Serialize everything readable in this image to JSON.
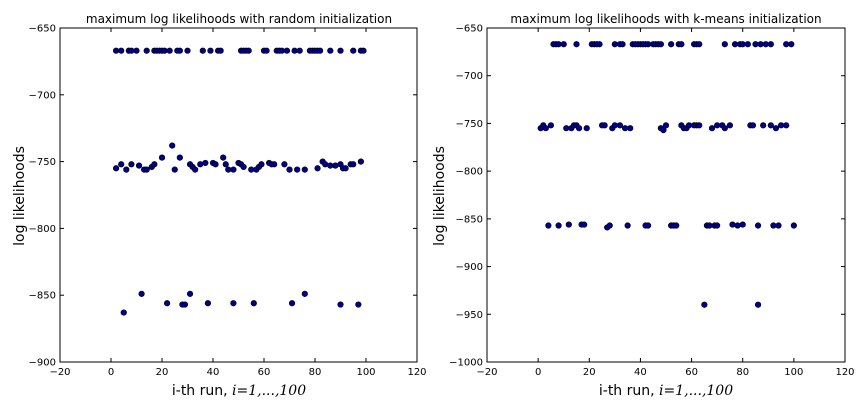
{
  "chart_data": [
    {
      "type": "scatter",
      "title": "maximum log likelihoods with random initialization",
      "xlabel_text": "i-th run, ",
      "xlabel_math": "i=1,...,100",
      "ylabel": "log likelihoods",
      "xlim": [
        -20,
        120
      ],
      "ylim": [
        -900,
        -650
      ],
      "xticks": [
        -20,
        0,
        20,
        40,
        60,
        80,
        100,
        120
      ],
      "yticks": [
        -900,
        -850,
        -800,
        -750,
        -700,
        -650
      ],
      "grid": false,
      "marker_color": "#00008b",
      "points": [
        [
          2,
          -667
        ],
        [
          4,
          -667
        ],
        [
          7,
          -667
        ],
        [
          8,
          -667
        ],
        [
          10,
          -667
        ],
        [
          14,
          -667
        ],
        [
          17,
          -667
        ],
        [
          18,
          -667
        ],
        [
          19,
          -667
        ],
        [
          20,
          -667
        ],
        [
          21,
          -667
        ],
        [
          23,
          -667
        ],
        [
          26,
          -667
        ],
        [
          27,
          -667
        ],
        [
          30,
          -667
        ],
        [
          36,
          -667
        ],
        [
          39,
          -667
        ],
        [
          42,
          -667
        ],
        [
          43,
          -667
        ],
        [
          51,
          -667
        ],
        [
          52,
          -667
        ],
        [
          53,
          -667
        ],
        [
          54,
          -667
        ],
        [
          60,
          -667
        ],
        [
          61,
          -667
        ],
        [
          65,
          -667
        ],
        [
          66,
          -667
        ],
        [
          67,
          -667
        ],
        [
          69,
          -667
        ],
        [
          72,
          -667
        ],
        [
          74,
          -667
        ],
        [
          78,
          -667
        ],
        [
          79,
          -667
        ],
        [
          80,
          -667
        ],
        [
          81,
          -667
        ],
        [
          82,
          -667
        ],
        [
          86,
          -667
        ],
        [
          90,
          -667
        ],
        [
          95,
          -667
        ],
        [
          98,
          -667
        ],
        [
          99,
          -667
        ],
        [
          2,
          -755
        ],
        [
          4,
          -752
        ],
        [
          6,
          -756
        ],
        [
          8,
          -752
        ],
        [
          11,
          -753
        ],
        [
          13,
          -756
        ],
        [
          14,
          -756
        ],
        [
          16,
          -754
        ],
        [
          17,
          -752
        ],
        [
          20,
          -747
        ],
        [
          24,
          -738
        ],
        [
          25,
          -756
        ],
        [
          27,
          -747
        ],
        [
          31,
          -752
        ],
        [
          32,
          -754
        ],
        [
          33,
          -756
        ],
        [
          35,
          -752
        ],
        [
          37,
          -751
        ],
        [
          40,
          -751
        ],
        [
          41,
          -752
        ],
        [
          44,
          -747
        ],
        [
          45,
          -752
        ],
        [
          46,
          -756
        ],
        [
          48,
          -756
        ],
        [
          50,
          -751
        ],
        [
          51,
          -752
        ],
        [
          52,
          -754
        ],
        [
          55,
          -756
        ],
        [
          57,
          -756
        ],
        [
          58,
          -754
        ],
        [
          59,
          -752
        ],
        [
          62,
          -751
        ],
        [
          63,
          -752
        ],
        [
          64,
          -752
        ],
        [
          68,
          -752
        ],
        [
          70,
          -756
        ],
        [
          73,
          -756
        ],
        [
          76,
          -756
        ],
        [
          81,
          -755
        ],
        [
          83,
          -750
        ],
        [
          84,
          -752
        ],
        [
          86,
          -753
        ],
        [
          88,
          -753
        ],
        [
          90,
          -752
        ],
        [
          91,
          -755
        ],
        [
          92,
          -755
        ],
        [
          94,
          -752
        ],
        [
          95,
          -752
        ],
        [
          98,
          -750
        ],
        [
          5,
          -863
        ],
        [
          12,
          -849
        ],
        [
          22,
          -856
        ],
        [
          28,
          -857
        ],
        [
          29,
          -857
        ],
        [
          31,
          -849
        ],
        [
          38,
          -856
        ],
        [
          48,
          -856
        ],
        [
          56,
          -856
        ],
        [
          71,
          -856
        ],
        [
          76,
          -849
        ],
        [
          90,
          -857
        ],
        [
          97,
          -857
        ]
      ]
    },
    {
      "type": "scatter",
      "title": "maximum log likelihoods with k-means initialization",
      "xlabel_text": "i-th run, ",
      "xlabel_math": "i=1,...,100",
      "ylabel": "log likelihoods",
      "xlim": [
        -20,
        120
      ],
      "ylim": [
        -1000,
        -650
      ],
      "xticks": [
        -20,
        0,
        20,
        40,
        60,
        80,
        100,
        120
      ],
      "yticks": [
        -1000,
        -950,
        -900,
        -850,
        -800,
        -750,
        -700,
        -650
      ],
      "grid": false,
      "marker_color": "#00008b",
      "points": [
        [
          6,
          -667
        ],
        [
          7,
          -667
        ],
        [
          8,
          -667
        ],
        [
          10,
          -667
        ],
        [
          15,
          -667
        ],
        [
          21,
          -667
        ],
        [
          22,
          -667
        ],
        [
          23,
          -667
        ],
        [
          24,
          -667
        ],
        [
          30,
          -667
        ],
        [
          32,
          -667
        ],
        [
          33,
          -667
        ],
        [
          37,
          -667
        ],
        [
          38,
          -667
        ],
        [
          39,
          -667
        ],
        [
          40,
          -667
        ],
        [
          41,
          -667
        ],
        [
          42,
          -667
        ],
        [
          43,
          -667
        ],
        [
          45,
          -667
        ],
        [
          46,
          -667
        ],
        [
          47,
          -667
        ],
        [
          48,
          -667
        ],
        [
          52,
          -667
        ],
        [
          55,
          -667
        ],
        [
          56,
          -667
        ],
        [
          61,
          -667
        ],
        [
          62,
          -667
        ],
        [
          63,
          -667
        ],
        [
          73,
          -667
        ],
        [
          77,
          -667
        ],
        [
          79,
          -667
        ],
        [
          80,
          -667
        ],
        [
          82,
          -667
        ],
        [
          85,
          -667
        ],
        [
          87,
          -667
        ],
        [
          89,
          -667
        ],
        [
          91,
          -667
        ],
        [
          97,
          -667
        ],
        [
          99,
          -667
        ],
        [
          1,
          -755
        ],
        [
          2,
          -752
        ],
        [
          3,
          -755
        ],
        [
          5,
          -752
        ],
        [
          11,
          -755
        ],
        [
          13,
          -755
        ],
        [
          14,
          -752
        ],
        [
          15,
          -752
        ],
        [
          16,
          -755
        ],
        [
          19,
          -755
        ],
        [
          25,
          -752
        ],
        [
          26,
          -752
        ],
        [
          29,
          -755
        ],
        [
          30,
          -752
        ],
        [
          32,
          -752
        ],
        [
          34,
          -755
        ],
        [
          36,
          -755
        ],
        [
          48,
          -755
        ],
        [
          49,
          -757
        ],
        [
          50,
          -752
        ],
        [
          56,
          -752
        ],
        [
          57,
          -755
        ],
        [
          58,
          -755
        ],
        [
          59,
          -752
        ],
        [
          61,
          -752
        ],
        [
          62,
          -752
        ],
        [
          63,
          -752
        ],
        [
          68,
          -755
        ],
        [
          70,
          -752
        ],
        [
          72,
          -752
        ],
        [
          73,
          -755
        ],
        [
          75,
          -752
        ],
        [
          83,
          -752
        ],
        [
          84,
          -752
        ],
        [
          88,
          -752
        ],
        [
          91,
          -752
        ],
        [
          93,
          -755
        ],
        [
          95,
          -752
        ],
        [
          97,
          -752
        ],
        [
          4,
          -857
        ],
        [
          8,
          -857
        ],
        [
          12,
          -856
        ],
        [
          17,
          -856
        ],
        [
          18,
          -856
        ],
        [
          27,
          -859
        ],
        [
          28,
          -857
        ],
        [
          35,
          -857
        ],
        [
          42,
          -857
        ],
        [
          43,
          -857
        ],
        [
          52,
          -857
        ],
        [
          53,
          -857
        ],
        [
          54,
          -857
        ],
        [
          66,
          -857
        ],
        [
          67,
          -857
        ],
        [
          69,
          -857
        ],
        [
          70,
          -857
        ],
        [
          76,
          -856
        ],
        [
          78,
          -857
        ],
        [
          80,
          -856
        ],
        [
          86,
          -857
        ],
        [
          92,
          -857
        ],
        [
          94,
          -857
        ],
        [
          100,
          -857
        ],
        [
          65,
          -940
        ],
        [
          86,
          -940
        ]
      ]
    }
  ]
}
